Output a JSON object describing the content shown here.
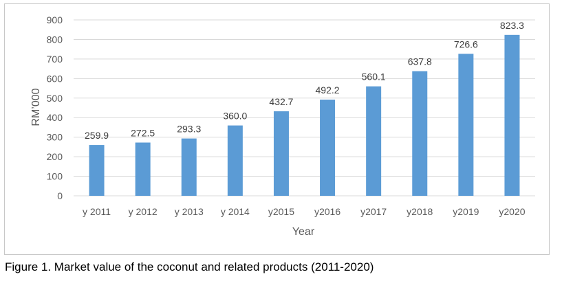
{
  "chart_data": {
    "type": "bar",
    "categories": [
      "y 2011",
      "y 2012",
      "y 2013",
      "y 2014",
      "y2015",
      "y2016",
      "y2017",
      "y2018",
      "y2019",
      "y2020"
    ],
    "values": [
      259.9,
      272.5,
      293.3,
      360.0,
      432.7,
      492.2,
      560.1,
      637.8,
      726.6,
      823.3
    ],
    "data_labels": [
      "259.9",
      "272.5",
      "293.3",
      "360.0",
      "432.7",
      "492.2",
      "560.1",
      "637.8",
      "726.6",
      "823.3"
    ],
    "xlabel": "Year",
    "ylabel": "RM’000",
    "ylim": [
      0,
      900
    ],
    "yticks": [
      0,
      100,
      200,
      300,
      400,
      500,
      600,
      700,
      800,
      900
    ],
    "grid": "horizontal",
    "bar_color": "#5b9bd5",
    "grid_color": "#d9d9d9"
  },
  "caption": "Figure 1. Market value of the coconut and related products (2011-2020)"
}
